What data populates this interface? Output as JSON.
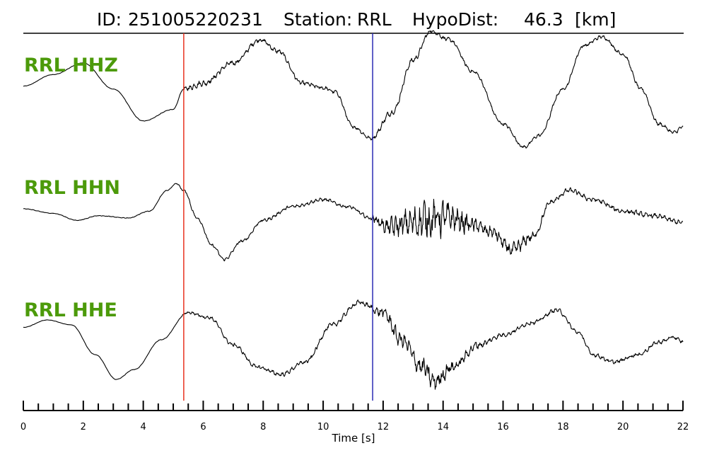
{
  "header": {
    "id_label": "ID:",
    "id_value": "251005220231",
    "station_label": "Station:",
    "station_value": "RRL",
    "hypodist_label": "HypoDist:",
    "hypodist_value": "46.3",
    "hypodist_unit": "[km]"
  },
  "chart_data": {
    "type": "line",
    "xlabel": "Time [s]",
    "xlim": [
      0,
      22
    ],
    "major_ticks": [
      0,
      2,
      4,
      6,
      8,
      10,
      12,
      14,
      16,
      18,
      20,
      22
    ],
    "minor_tick_step": 0.5,
    "grid": false,
    "channel_label_color": "#4c9a0a",
    "picks": [
      {
        "time": 5.35,
        "color": "#e8321f"
      },
      {
        "time": 11.65,
        "color": "#2b2bb5"
      }
    ],
    "series": [
      {
        "name": "RRL HHZ",
        "amp_range": [
          -1,
          1
        ],
        "control_points": [
          [
            0,
            0.15
          ],
          [
            1,
            0.35
          ],
          [
            2,
            0.55
          ],
          [
            3,
            0.1
          ],
          [
            4,
            -0.45
          ],
          [
            5,
            -0.25
          ],
          [
            5.35,
            0.1
          ],
          [
            6,
            0.2
          ],
          [
            7,
            0.55
          ],
          [
            7.9,
            0.95
          ],
          [
            8.5,
            0.75
          ],
          [
            9.3,
            0.2
          ],
          [
            10,
            0.12
          ],
          [
            10.4,
            0.05
          ],
          [
            11,
            -0.55
          ],
          [
            11.6,
            -0.75
          ],
          [
            12.3,
            -0.3
          ],
          [
            13,
            0.6
          ],
          [
            13.6,
            1.1
          ],
          [
            14.2,
            0.95
          ],
          [
            15,
            0.4
          ],
          [
            16,
            -0.5
          ],
          [
            16.7,
            -0.9
          ],
          [
            17.2,
            -0.7
          ],
          [
            18,
            0.1
          ],
          [
            18.7,
            0.85
          ],
          [
            19.3,
            1.0
          ],
          [
            20,
            0.7
          ],
          [
            20.6,
            0.1
          ],
          [
            21.2,
            -0.5
          ],
          [
            21.7,
            -0.65
          ],
          [
            22,
            -0.55
          ]
        ],
        "noise": [
          [
            0,
            0.003
          ],
          [
            5.3,
            0.005
          ],
          [
            5.4,
            0.05
          ],
          [
            8,
            0.04
          ],
          [
            11.6,
            0.03
          ],
          [
            12,
            0.05
          ],
          [
            15,
            0.03
          ],
          [
            22,
            0.03
          ]
        ]
      },
      {
        "name": "RRL HHN",
        "amp_range": [
          -1,
          1
        ],
        "control_points": [
          [
            0,
            0.2
          ],
          [
            1,
            0.1
          ],
          [
            1.8,
            -0.05
          ],
          [
            2.5,
            0.05
          ],
          [
            3.5,
            0.0
          ],
          [
            4.2,
            0.15
          ],
          [
            4.8,
            0.6
          ],
          [
            5.1,
            0.75
          ],
          [
            5.35,
            0.6
          ],
          [
            5.8,
            0.0
          ],
          [
            6.3,
            -0.6
          ],
          [
            6.7,
            -0.9
          ],
          [
            7.3,
            -0.5
          ],
          [
            8,
            -0.05
          ],
          [
            9,
            0.25
          ],
          [
            10,
            0.4
          ],
          [
            10.8,
            0.25
          ],
          [
            11.6,
            0.0
          ],
          [
            12.2,
            -0.2
          ],
          [
            13,
            -0.1
          ],
          [
            13.6,
            0.0
          ],
          [
            14.2,
            0.0
          ],
          [
            15,
            -0.15
          ],
          [
            15.6,
            -0.3
          ],
          [
            16.3,
            -0.7
          ],
          [
            17,
            -0.4
          ],
          [
            17.6,
            0.35
          ],
          [
            18.2,
            0.6
          ],
          [
            19,
            0.4
          ],
          [
            20,
            0.15
          ],
          [
            21,
            0.05
          ],
          [
            22,
            -0.1
          ]
        ],
        "noise": [
          [
            0,
            0.005
          ],
          [
            5,
            0.008
          ],
          [
            5.6,
            0.03
          ],
          [
            11.5,
            0.04
          ],
          [
            12,
            0.15
          ],
          [
            13.6,
            0.45
          ],
          [
            14.3,
            0.3
          ],
          [
            15.3,
            0.12
          ],
          [
            16.4,
            0.15
          ],
          [
            17.5,
            0.05
          ],
          [
            22,
            0.05
          ]
        ]
      },
      {
        "name": "RRL HHE",
        "amp_range": [
          -1,
          1
        ],
        "control_points": [
          [
            0,
            0.25
          ],
          [
            0.8,
            0.4
          ],
          [
            1.6,
            0.3
          ],
          [
            2.4,
            -0.3
          ],
          [
            3.1,
            -0.8
          ],
          [
            3.7,
            -0.6
          ],
          [
            4.6,
            0.0
          ],
          [
            5.5,
            0.55
          ],
          [
            6.2,
            0.45
          ],
          [
            7,
            -0.1
          ],
          [
            7.8,
            -0.55
          ],
          [
            8.6,
            -0.7
          ],
          [
            9.4,
            -0.45
          ],
          [
            10.3,
            0.3
          ],
          [
            11.2,
            0.75
          ],
          [
            12,
            0.55
          ],
          [
            12.6,
            0.0
          ],
          [
            13.3,
            -0.55
          ],
          [
            13.7,
            -0.85
          ],
          [
            14.3,
            -0.55
          ],
          [
            15.2,
            -0.1
          ],
          [
            16,
            0.1
          ],
          [
            17,
            0.35
          ],
          [
            17.8,
            0.6
          ],
          [
            18.5,
            0.15
          ],
          [
            19,
            -0.3
          ],
          [
            19.7,
            -0.45
          ],
          [
            20.5,
            -0.3
          ],
          [
            21.2,
            -0.05
          ],
          [
            21.7,
            0.05
          ],
          [
            22,
            -0.05
          ]
        ],
        "noise": [
          [
            0,
            0.003
          ],
          [
            5.2,
            0.005
          ],
          [
            5.5,
            0.03
          ],
          [
            11.5,
            0.05
          ],
          [
            12.3,
            0.14
          ],
          [
            13.6,
            0.2
          ],
          [
            14.5,
            0.1
          ],
          [
            16,
            0.04
          ],
          [
            22,
            0.04
          ]
        ]
      }
    ]
  }
}
